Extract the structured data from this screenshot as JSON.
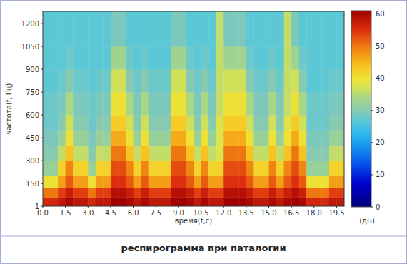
{
  "chart_data": {
    "type": "heatmap",
    "title": "респирограмма при паталогии",
    "x_label": "время(t,c)",
    "y_label": "частота(f, Гц)",
    "xlim": [
      0,
      20
    ],
    "ylim": [
      1,
      1280
    ],
    "xticks": [
      {
        "value": 0,
        "label": "0.0"
      },
      1.5,
      {
        "value": 3,
        "label": "3.0"
      },
      4.5,
      {
        "value": 6,
        "label": "6.0"
      },
      7.5,
      {
        "value": 9,
        "label": "9.0"
      },
      10.5,
      {
        "value": 12,
        "label": "12.0"
      },
      13.5,
      {
        "value": 15,
        "label": "15.0"
      },
      16.5,
      {
        "value": 18,
        "label": "18.0"
      },
      19.5
    ],
    "yticks": [
      1,
      150,
      300,
      450,
      600,
      750,
      900,
      1050,
      1200
    ],
    "grid": false,
    "heatmap": {
      "x_edges": [
        0,
        0.5,
        1,
        1.5,
        2,
        2.5,
        3,
        3.5,
        4,
        4.5,
        5,
        5.5,
        6,
        6.5,
        7,
        7.5,
        8,
        8.5,
        9,
        9.5,
        10,
        10.5,
        11,
        11.5,
        12,
        12.5,
        13,
        13.5,
        14,
        14.5,
        15,
        15.5,
        16,
        16.5,
        17,
        17.5,
        18,
        18.5,
        19,
        19.5,
        20
      ],
      "y_edges": [
        1,
        60,
        120,
        200,
        300,
        400,
        500,
        600,
        750,
        900,
        1050,
        1280
      ],
      "cells": [
        [
          56,
          56,
          58,
          60,
          58,
          58,
          56,
          58,
          58,
          62,
          62,
          60,
          58,
          60,
          58,
          58,
          58,
          62,
          62,
          60,
          58,
          60,
          58,
          58,
          62,
          62,
          62,
          60,
          58,
          58,
          60,
          58,
          60,
          62,
          60,
          56,
          56,
          56,
          58,
          58
        ],
        [
          50,
          50,
          54,
          57,
          54,
          54,
          50,
          54,
          54,
          59,
          59,
          57,
          54,
          57,
          54,
          54,
          54,
          59,
          59,
          57,
          54,
          57,
          54,
          54,
          59,
          59,
          59,
          57,
          54,
          54,
          57,
          54,
          57,
          59,
          57,
          50,
          50,
          50,
          54,
          54
        ],
        [
          40,
          40,
          47,
          52,
          47,
          47,
          40,
          47,
          47,
          55,
          55,
          52,
          47,
          52,
          47,
          47,
          47,
          55,
          55,
          52,
          47,
          52,
          47,
          47,
          55,
          55,
          55,
          52,
          47,
          47,
          52,
          47,
          52,
          55,
          52,
          40,
          40,
          40,
          47,
          47
        ],
        [
          32,
          32,
          42,
          49,
          42,
          42,
          32,
          42,
          42,
          53,
          53,
          49,
          42,
          49,
          42,
          42,
          42,
          53,
          53,
          49,
          42,
          49,
          42,
          42,
          53,
          53,
          53,
          49,
          42,
          42,
          49,
          42,
          49,
          53,
          49,
          32,
          32,
          32,
          42,
          42
        ],
        [
          30,
          30,
          36,
          44,
          36,
          36,
          30,
          36,
          36,
          50,
          50,
          44,
          36,
          44,
          36,
          36,
          36,
          50,
          50,
          44,
          36,
          44,
          36,
          38,
          50,
          50,
          50,
          44,
          36,
          36,
          44,
          36,
          44,
          50,
          44,
          30,
          30,
          30,
          36,
          36
        ],
        [
          29,
          29,
          32,
          40,
          32,
          32,
          29,
          32,
          32,
          46,
          46,
          40,
          32,
          40,
          32,
          32,
          32,
          46,
          46,
          40,
          32,
          40,
          32,
          38,
          46,
          46,
          46,
          40,
          32,
          32,
          40,
          32,
          40,
          46,
          40,
          29,
          29,
          29,
          32,
          32
        ],
        [
          28,
          28,
          30,
          37,
          30,
          30,
          28,
          30,
          30,
          43,
          43,
          37,
          30,
          37,
          30,
          30,
          30,
          43,
          43,
          37,
          30,
          37,
          30,
          38,
          43,
          43,
          43,
          37,
          30,
          30,
          37,
          30,
          38,
          43,
          37,
          28,
          28,
          28,
          30,
          30
        ],
        [
          28,
          28,
          29,
          34,
          29,
          29,
          28,
          29,
          29,
          40,
          40,
          34,
          29,
          34,
          29,
          29,
          29,
          40,
          40,
          34,
          29,
          34,
          29,
          36,
          40,
          40,
          40,
          34,
          29,
          29,
          34,
          29,
          36,
          40,
          34,
          28,
          28,
          28,
          29,
          29
        ],
        [
          27,
          27,
          28,
          30,
          28,
          28,
          27,
          28,
          28,
          37,
          37,
          30,
          28,
          30,
          28,
          28,
          28,
          37,
          37,
          30,
          28,
          30,
          28,
          36,
          37,
          37,
          37,
          30,
          28,
          28,
          30,
          28,
          36,
          37,
          30,
          27,
          27,
          27,
          28,
          28
        ],
        [
          27,
          27,
          27,
          28,
          27,
          27,
          27,
          27,
          27,
          33,
          33,
          28,
          27,
          28,
          27,
          27,
          27,
          33,
          33,
          28,
          27,
          28,
          27,
          36,
          33,
          33,
          33,
          28,
          27,
          27,
          28,
          27,
          36,
          33,
          28,
          27,
          27,
          27,
          27,
          27
        ],
        [
          27,
          27,
          27,
          27,
          27,
          27,
          27,
          27,
          27,
          29,
          29,
          27,
          27,
          27,
          27,
          27,
          27,
          29,
          29,
          27,
          27,
          27,
          27,
          36,
          29,
          29,
          29,
          27,
          27,
          27,
          27,
          27,
          36,
          29,
          27,
          27,
          27,
          27,
          27,
          27
        ]
      ]
    },
    "colorbar": {
      "range": [
        0,
        61
      ],
      "ticks": [
        0,
        10,
        20,
        30,
        40,
        50,
        60
      ],
      "label": "(дБ)"
    }
  }
}
